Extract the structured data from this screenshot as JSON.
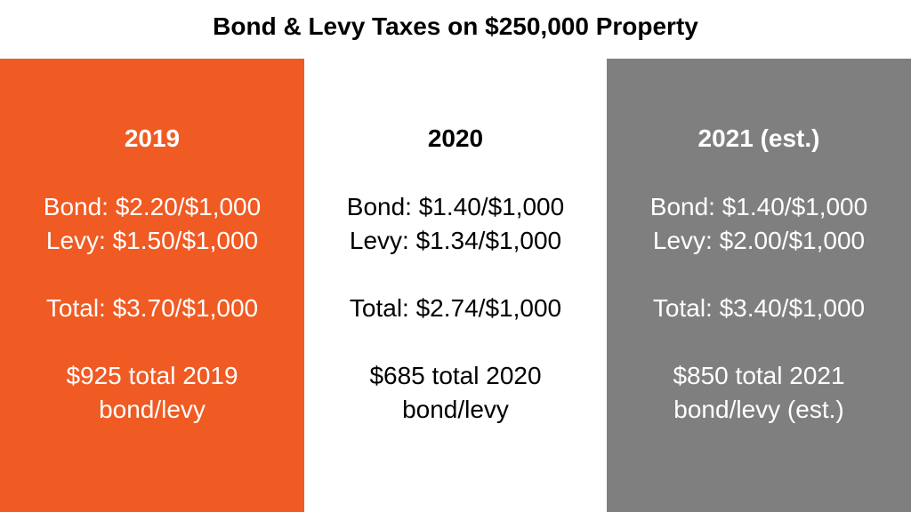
{
  "title": "Bond & Levy Taxes on $250,000 Property",
  "colors": {
    "col_2019_bg": "#f05a23",
    "col_2020_bg": "#ffffff",
    "col_2021_bg": "#7f7f7f"
  },
  "columns": [
    {
      "year": "2019",
      "bond": "Bond: $2.20/$1,000",
      "levy": "Levy: $1.50/$1,000",
      "total": "Total: $3.70/$1,000",
      "summary_line1": "$925 total 2019",
      "summary_line2": "bond/levy"
    },
    {
      "year": "2020",
      "bond": "Bond: $1.40/$1,000",
      "levy": "Levy: $1.34/$1,000",
      "total": "Total: $2.74/$1,000",
      "summary_line1": "$685 total 2020",
      "summary_line2": "bond/levy"
    },
    {
      "year": "2021 (est.)",
      "bond": "Bond: $1.40/$1,000",
      "levy": "Levy: $2.00/$1,000",
      "total": "Total: $3.40/$1,000",
      "summary_line1": "$850 total 2021",
      "summary_line2": "bond/levy (est.)"
    }
  ]
}
